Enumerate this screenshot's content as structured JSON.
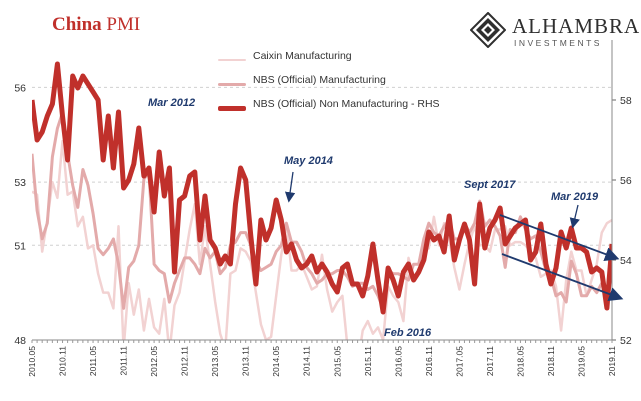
{
  "header": {
    "title_part1": "China",
    "title_part2": "PMI"
  },
  "logo": {
    "name": "ALHAMBRA",
    "subtitle": "INVESTMENTS",
    "icon": "diamond-logo-icon"
  },
  "colors": {
    "caixin": "#f2d2d2",
    "nbs_manufacturing": "#e3aaaa",
    "nbs_non_manufacturing": "#c0302b",
    "annotation": "#1f3a6e",
    "grid": "#d0d0d0"
  },
  "chart_data": {
    "type": "line",
    "title": "China PMI",
    "x": [
      "2010.05",
      "2010.06",
      "2010.07",
      "2010.08",
      "2010.09",
      "2010.10",
      "2010.11",
      "2010.12",
      "2011.01",
      "2011.02",
      "2011.03",
      "2011.04",
      "2011.05",
      "2011.06",
      "2011.07",
      "2011.08",
      "2011.09",
      "2011.10",
      "2011.11",
      "2011.12",
      "2012.01",
      "2012.02",
      "2012.03",
      "2012.04",
      "2012.05",
      "2012.06",
      "2012.07",
      "2012.08",
      "2012.09",
      "2012.10",
      "2012.11",
      "2012.12",
      "2013.01",
      "2013.02",
      "2013.03",
      "2013.04",
      "2013.05",
      "2013.06",
      "2013.07",
      "2013.08",
      "2013.09",
      "2013.10",
      "2013.11",
      "2013.12",
      "2014.01",
      "2014.02",
      "2014.03",
      "2014.04",
      "2014.05",
      "2014.06",
      "2014.07",
      "2014.08",
      "2014.09",
      "2014.10",
      "2014.11",
      "2014.12",
      "2015.01",
      "2015.02",
      "2015.03",
      "2015.04",
      "2015.05",
      "2015.06",
      "2015.07",
      "2015.08",
      "2015.09",
      "2015.10",
      "2015.11",
      "2015.12",
      "2016.01",
      "2016.02",
      "2016.03",
      "2016.04",
      "2016.05",
      "2016.06",
      "2016.07",
      "2016.08",
      "2016.09",
      "2016.10",
      "2016.11",
      "2016.12",
      "2017.01",
      "2017.02",
      "2017.03",
      "2017.04",
      "2017.05",
      "2017.06",
      "2017.07",
      "2017.08",
      "2017.09",
      "2017.10",
      "2017.11",
      "2017.12",
      "2018.01",
      "2018.02",
      "2018.03",
      "2018.04",
      "2018.05",
      "2018.06",
      "2018.07",
      "2018.08",
      "2018.09",
      "2018.10",
      "2018.11",
      "2018.12",
      "2019.01",
      "2019.02",
      "2019.03",
      "2019.04",
      "2019.05",
      "2019.06",
      "2019.07",
      "2019.08",
      "2019.09",
      "2019.10",
      "2019.11"
    ],
    "xtick_labels": [
      "2010.05",
      "2010.11",
      "2011.05",
      "2011.11",
      "2012.05",
      "2012.11",
      "2013.05",
      "2013.11",
      "2014.05",
      "2014.11",
      "2015.05",
      "2015.11",
      "2016.05",
      "2016.11",
      "2017.05",
      "2017.11",
      "2018.05",
      "2018.11",
      "2019.05",
      "2019.11"
    ],
    "y_left": {
      "ticks": [
        48,
        51,
        53,
        56
      ],
      "min": 48,
      "max": 57.5
    },
    "y_right": {
      "ticks": [
        52,
        54,
        56,
        58
      ],
      "min": 52,
      "max": 59.5
    },
    "series": [
      {
        "name": "Caixin Manufacturing",
        "axis": "left",
        "values": [
          52.7,
          52.6,
          50.8,
          51.8,
          53.0,
          52.5,
          54.3,
          52.6,
          52.7,
          51.6,
          51.9,
          50.9,
          51.0,
          50.1,
          49.5,
          49.5,
          49.0,
          51.6,
          47.7,
          49.8,
          48.8,
          49.6,
          48.3,
          49.3,
          48.4,
          48.2,
          49.3,
          47.6,
          49.1,
          49.5,
          50.5,
          51.5,
          52.3,
          50.4,
          51.6,
          50.4,
          49.2,
          48.2,
          47.7,
          50.1,
          50.2,
          50.9,
          50.8,
          50.5,
          49.5,
          48.5,
          48.0,
          48.1,
          49.4,
          50.7,
          51.7,
          50.2,
          50.2,
          50.4,
          50.0,
          49.6,
          49.7,
          50.7,
          49.6,
          48.9,
          49.2,
          49.4,
          47.8,
          47.3,
          47.2,
          48.3,
          48.6,
          48.2,
          48.4,
          48.0,
          49.7,
          49.4,
          49.2,
          48.6,
          50.6,
          50.0,
          50.1,
          51.2,
          50.9,
          51.9,
          51.0,
          51.7,
          51.2,
          50.3,
          49.6,
          50.4,
          51.1,
          51.6,
          51.0,
          51.0,
          50.8,
          51.5,
          51.5,
          51.6,
          51.0,
          51.1,
          51.1,
          51.0,
          50.8,
          50.6,
          50.0,
          50.1,
          50.2,
          49.7,
          48.3,
          49.9,
          50.8,
          50.2,
          50.2,
          49.4,
          49.9,
          50.4,
          51.4,
          51.7,
          51.8
        ]
      },
      {
        "name": "NBS (Official) Manufacturing",
        "axis": "left",
        "values": [
          53.9,
          52.1,
          51.2,
          51.7,
          53.8,
          54.7,
          55.2,
          53.9,
          52.9,
          52.2,
          53.4,
          52.9,
          52.0,
          50.9,
          50.7,
          50.9,
          51.2,
          50.4,
          49.0,
          50.3,
          50.5,
          51.0,
          53.1,
          53.3,
          50.4,
          50.2,
          50.1,
          49.2,
          49.8,
          50.2,
          50.6,
          50.6,
          50.4,
          50.1,
          50.9,
          50.6,
          50.8,
          50.1,
          50.3,
          51.0,
          51.1,
          51.4,
          51.4,
          51.0,
          50.5,
          50.2,
          50.3,
          50.4,
          50.8,
          51.0,
          51.7,
          51.1,
          51.1,
          50.8,
          50.3,
          50.1,
          49.8,
          49.9,
          50.1,
          50.1,
          50.2,
          50.2,
          50.0,
          49.7,
          49.8,
          49.8,
          49.6,
          49.7,
          49.4,
          49.0,
          50.2,
          50.1,
          50.1,
          50.0,
          49.9,
          50.4,
          50.4,
          51.2,
          51.7,
          51.4,
          51.3,
          51.6,
          51.8,
          51.2,
          51.2,
          51.7,
          51.4,
          51.7,
          52.4,
          51.6,
          51.8,
          51.6,
          51.3,
          50.3,
          51.5,
          51.4,
          51.9,
          51.5,
          51.2,
          51.3,
          50.8,
          50.2,
          50.0,
          49.4,
          49.5,
          49.2,
          50.5,
          50.1,
          49.4,
          49.4,
          49.7,
          49.5,
          49.8,
          49.3,
          50.2
        ]
      },
      {
        "name": "NBS (Official) Non Manufacturing - RHS",
        "axis": "right",
        "values": [
          58.0,
          57.0,
          57.2,
          57.6,
          57.9,
          58.9,
          57.6,
          56.5,
          58.6,
          58.3,
          58.6,
          58.4,
          58.2,
          58.0,
          56.5,
          57.6,
          56.3,
          57.7,
          55.8,
          56.0,
          56.4,
          57.3,
          56.1,
          56.3,
          55.2,
          56.7,
          55.6,
          56.3,
          53.7,
          55.5,
          55.6,
          56.1,
          56.2,
          54.5,
          55.6,
          54.5,
          54.3,
          53.9,
          54.1,
          53.9,
          55.4,
          56.3,
          56.0,
          54.6,
          53.4,
          55.0,
          54.5,
          54.8,
          55.5,
          55.0,
          54.2,
          54.4,
          54.0,
          53.8,
          53.9,
          54.1,
          53.7,
          53.9,
          53.7,
          53.4,
          53.2,
          53.8,
          53.9,
          53.4,
          53.4,
          53.1,
          53.6,
          54.4,
          53.5,
          52.7,
          53.8,
          53.5,
          53.1,
          53.7,
          53.9,
          53.5,
          53.7,
          54.0,
          54.7,
          54.5,
          54.6,
          54.2,
          55.1,
          54.0,
          54.5,
          54.9,
          54.5,
          53.4,
          55.4,
          54.3,
          54.8,
          55.0,
          55.3,
          54.4,
          54.6,
          54.8,
          54.9,
          55.0,
          54.0,
          54.2,
          54.9,
          53.9,
          53.4,
          53.8,
          54.7,
          54.3,
          54.8,
          54.3,
          54.3,
          54.2,
          53.7,
          53.8,
          53.7,
          52.8,
          54.4
        ]
      }
    ],
    "annotations": [
      "Mar 2012",
      "May 2014",
      "Feb 2016",
      "Sept 2017",
      "Mar 2019"
    ],
    "legend_position": "top-center",
    "grid": "horizontal-dashed"
  }
}
